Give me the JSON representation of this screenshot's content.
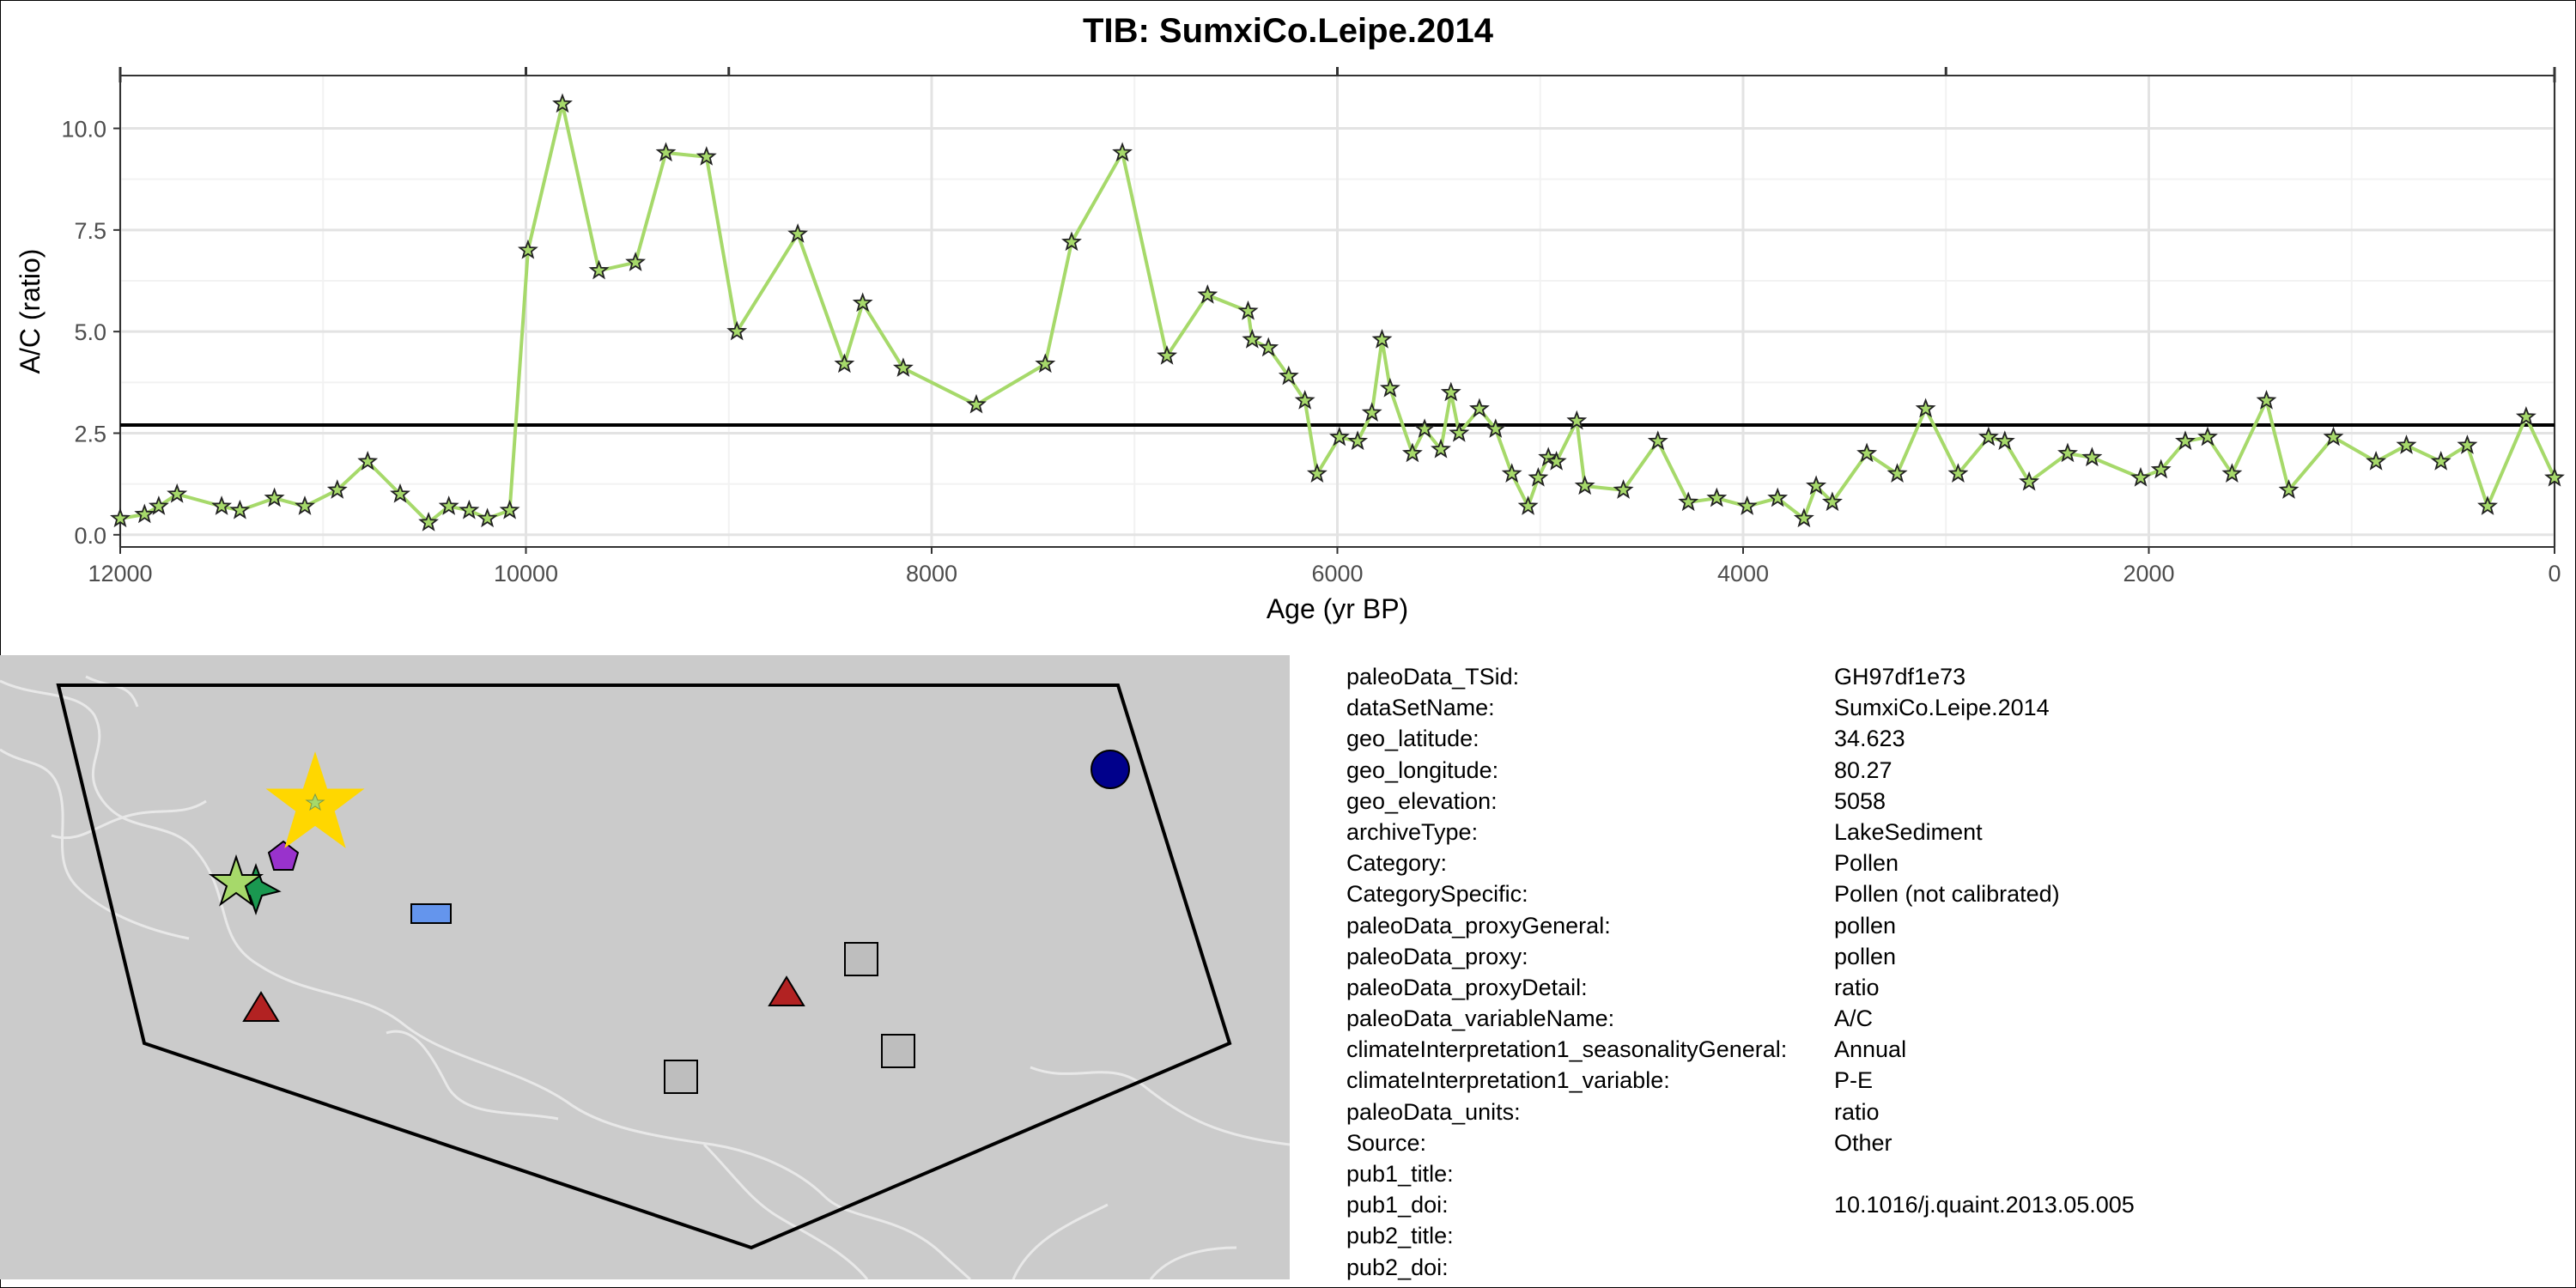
{
  "title": "TIB: SumxiCo.Leipe.2014",
  "chart_data": {
    "type": "line",
    "title": "TIB: SumxiCo.Leipe.2014",
    "xlabel": "Age (yr BP)",
    "ylabel": "A/C (ratio)",
    "xlim": [
      12000,
      0
    ],
    "ylim": [
      -0.3,
      11.3
    ],
    "x_reversed": true,
    "xticks": [
      12000,
      10000,
      8000,
      6000,
      4000,
      2000,
      0
    ],
    "xtick_labels": [
      "12000",
      "10000",
      "8000",
      "6000",
      "4000",
      "2000",
      "0"
    ],
    "yticks": [
      0,
      2.5,
      5,
      7.5,
      10
    ],
    "ytick_labels": [
      "0.0",
      "2.5",
      "5.0",
      "7.5",
      "10.0"
    ],
    "grid": true,
    "hline": 2.7,
    "line_color": "#a6d96a",
    "marker": "star",
    "marker_fill": "#a6d96a",
    "series": [
      {
        "x": [
          12000,
          11880,
          11810,
          11720,
          11500,
          11410,
          11240,
          11090,
          10930,
          10780,
          10620,
          10480,
          10380,
          10280,
          10190,
          10080,
          9990,
          9820,
          9640,
          9460,
          9310,
          9110,
          8960,
          8660,
          8430,
          8340,
          8140,
          7780,
          7440,
          7310,
          7060,
          6840,
          6640,
          6440,
          6420,
          6340,
          6240,
          6160,
          6100,
          5990,
          5900,
          5830,
          5780,
          5740,
          5630,
          5570,
          5490,
          5440,
          5400,
          5300,
          5220,
          5140,
          5060,
          5010,
          4960,
          4920,
          4820,
          4780,
          4590,
          4420,
          4270,
          4130,
          3980,
          3830,
          3700,
          3640,
          3560,
          3390,
          3240,
          3100,
          2940,
          2790,
          2710,
          2590,
          2400,
          2280,
          2040,
          1940,
          1820,
          1710,
          1590,
          1420,
          1310,
          1090,
          880,
          730,
          560,
          430,
          330,
          140,
          0
        ],
        "y": [
          0.4,
          0.5,
          0.7,
          1.0,
          0.7,
          0.6,
          0.9,
          0.7,
          1.1,
          1.8,
          1.0,
          0.3,
          0.7,
          0.6,
          0.4,
          0.6,
          7.0,
          10.6,
          6.5,
          6.7,
          9.4,
          9.3,
          5.0,
          7.4,
          4.2,
          5.7,
          4.1,
          3.2,
          4.2,
          7.2,
          9.4,
          4.4,
          5.9,
          5.5,
          4.8,
          4.6,
          3.9,
          3.3,
          1.5,
          2.4,
          2.3,
          3.0,
          4.8,
          3.6,
          2.0,
          2.6,
          2.1,
          3.5,
          2.5,
          3.1,
          2.6,
          1.5,
          0.7,
          1.4,
          1.9,
          1.8,
          2.8,
          1.2,
          1.1,
          2.3,
          0.8,
          0.9,
          0.7,
          0.9,
          0.4,
          1.2,
          0.8,
          2.0,
          1.5,
          3.1,
          1.5,
          2.4,
          2.3,
          1.3,
          2.0,
          1.9,
          1.4,
          1.6,
          2.3,
          2.4,
          1.5,
          3.3,
          1.1,
          2.4,
          1.8,
          2.2,
          1.8,
          2.2,
          0.7,
          2.9,
          1.4
        ]
      }
    ]
  },
  "map": {
    "polygon_color": "#000000",
    "markers": [
      {
        "shape": "star",
        "color": "#ffd700",
        "size": "large",
        "label": "selected site"
      },
      {
        "shape": "star",
        "color": "#a6d96a"
      },
      {
        "shape": "star",
        "color": "#1a9850"
      },
      {
        "shape": "pentagon",
        "color": "#9932cc"
      },
      {
        "shape": "circle",
        "color": "#00008b"
      },
      {
        "shape": "rectangle",
        "color": "#6495ed"
      },
      {
        "shape": "triangle",
        "color": "#b22222"
      },
      {
        "shape": "triangle",
        "color": "#b22222"
      },
      {
        "shape": "square",
        "color": "#bebebe"
      },
      {
        "shape": "square",
        "color": "#bebebe"
      },
      {
        "shape": "square",
        "color": "#bebebe"
      }
    ]
  },
  "metadata": [
    {
      "key": "paleoData_TSid:",
      "value": "GH97df1e73"
    },
    {
      "key": "dataSetName:",
      "value": "SumxiCo.Leipe.2014"
    },
    {
      "key": "geo_latitude:",
      "value": "34.623"
    },
    {
      "key": "geo_longitude:",
      "value": "80.27"
    },
    {
      "key": "geo_elevation:",
      "value": "5058"
    },
    {
      "key": "archiveType:",
      "value": "LakeSediment"
    },
    {
      "key": "Category:",
      "value": "Pollen"
    },
    {
      "key": "CategorySpecific:",
      "value": "Pollen (not calibrated)"
    },
    {
      "key": "paleoData_proxyGeneral:",
      "value": "pollen"
    },
    {
      "key": "paleoData_proxy:",
      "value": "pollen"
    },
    {
      "key": "paleoData_proxyDetail:",
      "value": "ratio"
    },
    {
      "key": "paleoData_variableName:",
      "value": "A/C"
    },
    {
      "key": "climateInterpretation1_seasonalityGeneral:",
      "value": "Annual"
    },
    {
      "key": "climateInterpretation1_variable:",
      "value": "P-E"
    },
    {
      "key": "paleoData_units:",
      "value": "ratio"
    },
    {
      "key": "Source:",
      "value": "Other"
    },
    {
      "key": "pub1_title:",
      "value": ""
    },
    {
      "key": "pub1_doi:",
      "value": "10.1016/j.quaint.2013.05.005"
    },
    {
      "key": "pub2_title:",
      "value": ""
    },
    {
      "key": "pub2_doi:",
      "value": ""
    }
  ]
}
